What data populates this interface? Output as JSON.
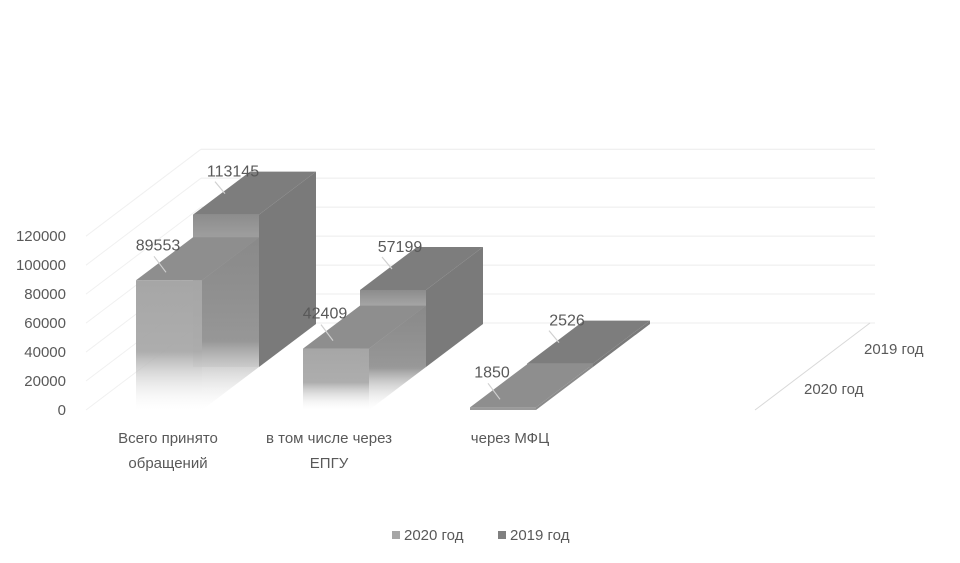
{
  "chart_data": {
    "type": "bar",
    "categories": [
      "Всего принято обращений",
      "в том числе через ЕПГУ",
      "через МФЦ"
    ],
    "category_lines": [
      [
        "Всего принято",
        "обращений"
      ],
      [
        "в том числе через",
        "ЕПГУ"
      ],
      [
        "через МФЦ"
      ]
    ],
    "series": [
      {
        "name": "2020 год",
        "values": [
          89553,
          42409,
          1850
        ],
        "color": "#a6a6a6"
      },
      {
        "name": "2019 год",
        "values": [
          113145,
          57199,
          2526
        ],
        "color": "#808080"
      }
    ],
    "y_ticks": [
      "0",
      "20000",
      "40000",
      "60000",
      "80000",
      "100000",
      "120000"
    ],
    "ylim": [
      0,
      120000
    ],
    "legend_position": "bottom",
    "grid": true,
    "style": "3d-column"
  }
}
